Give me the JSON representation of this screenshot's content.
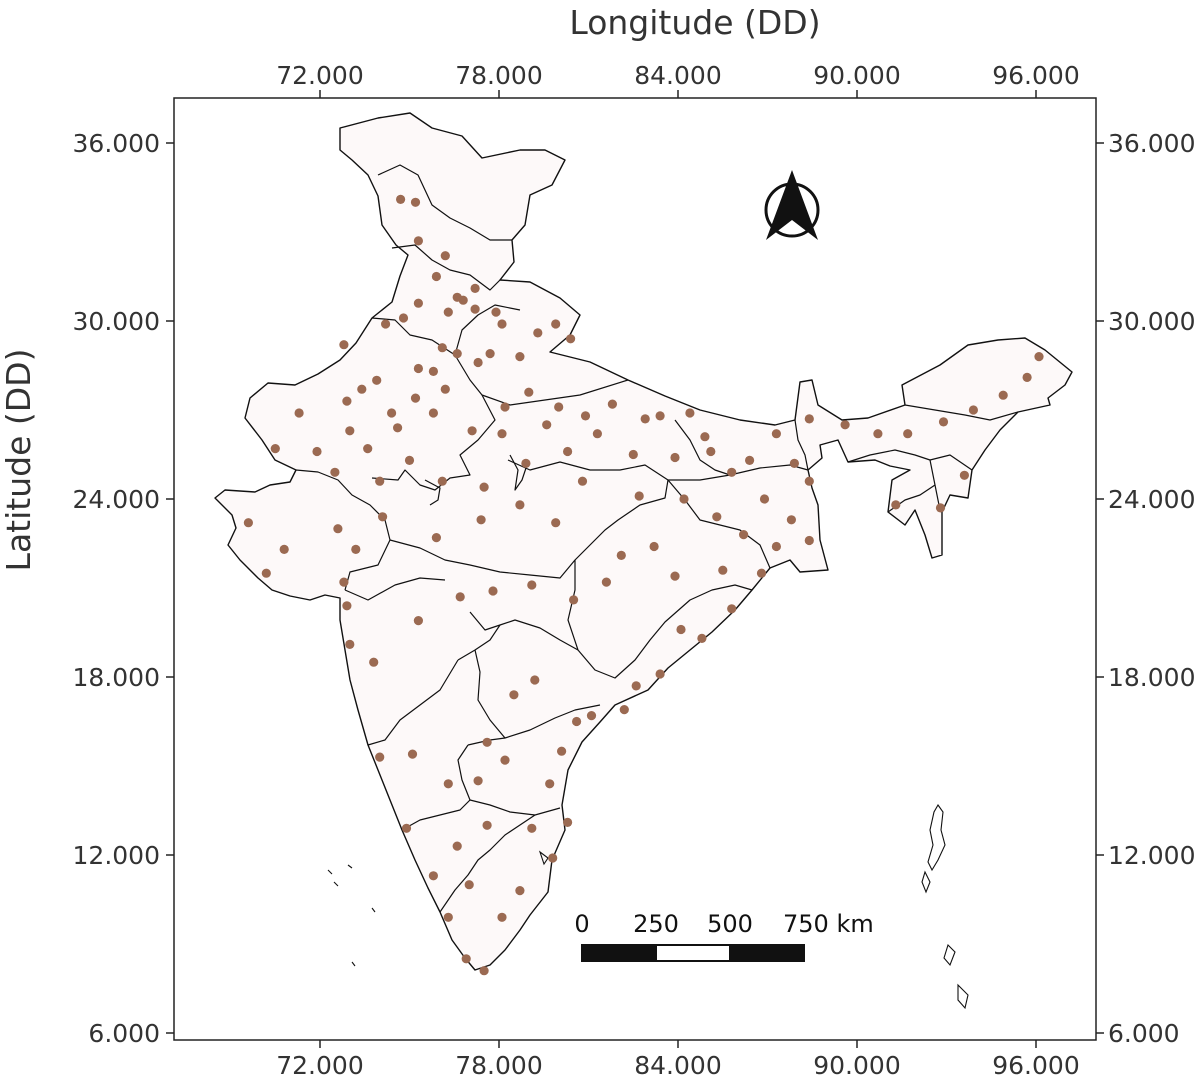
{
  "map": {
    "x_axis_title": "Longitude (DD)",
    "y_axis_title": "Latitude (DD)",
    "x_ticks": [
      "72.000",
      "78.000",
      "84.000",
      "90.000",
      "96.000"
    ],
    "y_ticks": [
      "36.000",
      "30.000",
      "24.000",
      "18.000",
      "12.000",
      "6.000"
    ],
    "point_color": "#9b6a52",
    "boundary_color": "#111111",
    "north_arrow_icon": "north-arrow-icon",
    "scale_bar": {
      "labels": [
        "0",
        "250",
        "500",
        "750 km"
      ],
      "segments": [
        "black",
        "white",
        "black"
      ]
    }
  },
  "chart_data": {
    "type": "scatter",
    "title": "",
    "xlabel": "Longitude (DD)",
    "ylabel": "Latitude (DD)",
    "xlim": [
      67,
      98
    ],
    "ylim": [
      6,
      37
    ],
    "x_ticks": [
      72,
      78,
      84,
      90,
      96
    ],
    "y_ticks": [
      6,
      12,
      18,
      24,
      30,
      36
    ],
    "grid": false,
    "series": [
      {
        "values": [
          [
            74.7,
            34.1
          ],
          [
            75.2,
            34.0
          ],
          [
            75.3,
            32.7
          ],
          [
            76.2,
            32.2
          ],
          [
            77.2,
            31.1
          ],
          [
            76.8,
            30.7
          ],
          [
            77.2,
            30.4
          ],
          [
            76.3,
            30.3
          ],
          [
            75.3,
            30.6
          ],
          [
            74.8,
            30.1
          ],
          [
            75.9,
            31.5
          ],
          [
            76.6,
            30.8
          ],
          [
            77.9,
            30.3
          ],
          [
            78.1,
            29.9
          ],
          [
            79.3,
            29.6
          ],
          [
            79.9,
            29.9
          ],
          [
            80.4,
            29.4
          ],
          [
            77.7,
            28.9
          ],
          [
            78.7,
            28.8
          ],
          [
            77.3,
            28.6
          ],
          [
            76.6,
            28.9
          ],
          [
            75.8,
            28.3
          ],
          [
            76.2,
            27.7
          ],
          [
            75.3,
            28.4
          ],
          [
            73.9,
            28.0
          ],
          [
            72.9,
            27.3
          ],
          [
            71.3,
            26.9
          ],
          [
            73.0,
            26.3
          ],
          [
            74.6,
            26.4
          ],
          [
            75.8,
            26.9
          ],
          [
            77.1,
            26.3
          ],
          [
            78.1,
            26.2
          ],
          [
            78.2,
            27.1
          ],
          [
            79.0,
            27.6
          ],
          [
            80.0,
            27.1
          ],
          [
            80.9,
            26.8
          ],
          [
            81.8,
            27.2
          ],
          [
            82.9,
            26.7
          ],
          [
            83.4,
            26.8
          ],
          [
            84.4,
            26.9
          ],
          [
            85.1,
            25.6
          ],
          [
            86.4,
            25.3
          ],
          [
            87.3,
            26.2
          ],
          [
            88.4,
            26.7
          ],
          [
            89.6,
            26.5
          ],
          [
            90.7,
            26.2
          ],
          [
            91.7,
            26.2
          ],
          [
            92.9,
            26.6
          ],
          [
            93.9,
            27.0
          ],
          [
            94.9,
            27.5
          ],
          [
            95.7,
            28.1
          ],
          [
            96.1,
            28.8
          ],
          [
            93.6,
            24.8
          ],
          [
            92.8,
            23.7
          ],
          [
            91.3,
            23.8
          ],
          [
            88.4,
            22.6
          ],
          [
            87.3,
            22.4
          ],
          [
            86.2,
            22.8
          ],
          [
            85.3,
            23.4
          ],
          [
            84.2,
            24.0
          ],
          [
            83.2,
            22.4
          ],
          [
            82.1,
            22.1
          ],
          [
            81.6,
            21.2
          ],
          [
            80.5,
            20.6
          ],
          [
            79.1,
            21.1
          ],
          [
            77.8,
            20.9
          ],
          [
            76.7,
            20.7
          ],
          [
            75.3,
            19.9
          ],
          [
            73.8,
            18.5
          ],
          [
            73.0,
            19.1
          ],
          [
            72.9,
            20.4
          ],
          [
            72.8,
            21.2
          ],
          [
            73.2,
            22.3
          ],
          [
            72.6,
            23.0
          ],
          [
            70.8,
            22.3
          ],
          [
            69.6,
            23.2
          ],
          [
            70.2,
            21.5
          ],
          [
            74.1,
            23.4
          ],
          [
            75.9,
            22.7
          ],
          [
            77.4,
            23.3
          ],
          [
            78.7,
            23.8
          ],
          [
            79.9,
            23.2
          ],
          [
            80.8,
            24.6
          ],
          [
            82.7,
            24.1
          ],
          [
            83.9,
            21.4
          ],
          [
            85.8,
            20.3
          ],
          [
            84.8,
            19.3
          ],
          [
            83.4,
            18.1
          ],
          [
            82.2,
            16.9
          ],
          [
            80.6,
            16.5
          ],
          [
            79.2,
            17.9
          ],
          [
            78.5,
            17.4
          ],
          [
            77.6,
            15.8
          ],
          [
            75.1,
            15.4
          ],
          [
            74.0,
            15.3
          ],
          [
            74.9,
            12.9
          ],
          [
            75.8,
            11.3
          ],
          [
            76.3,
            9.9
          ],
          [
            76.9,
            8.5
          ],
          [
            77.5,
            8.1
          ],
          [
            78.1,
            9.9
          ],
          [
            78.7,
            10.8
          ],
          [
            79.8,
            11.9
          ],
          [
            80.3,
            13.1
          ],
          [
            79.1,
            12.9
          ],
          [
            77.6,
            13.0
          ],
          [
            76.6,
            12.3
          ],
          [
            77.0,
            11.0
          ],
          [
            76.3,
            14.4
          ],
          [
            77.3,
            14.5
          ],
          [
            78.2,
            15.2
          ],
          [
            79.7,
            14.4
          ],
          [
            80.1,
            15.5
          ],
          [
            81.1,
            16.7
          ],
          [
            82.6,
            17.7
          ],
          [
            84.1,
            19.6
          ],
          [
            85.5,
            21.6
          ],
          [
            86.8,
            21.5
          ],
          [
            87.8,
            23.3
          ],
          [
            88.4,
            24.6
          ],
          [
            87.9,
            25.2
          ],
          [
            86.9,
            24.0
          ],
          [
            85.8,
            24.9
          ],
          [
            84.9,
            26.1
          ],
          [
            83.9,
            25.4
          ],
          [
            82.5,
            25.5
          ],
          [
            81.3,
            26.2
          ],
          [
            80.3,
            25.6
          ],
          [
            79.6,
            26.5
          ],
          [
            78.9,
            25.2
          ],
          [
            77.5,
            24.4
          ],
          [
            76.1,
            24.6
          ],
          [
            75.0,
            25.3
          ],
          [
            74.0,
            24.6
          ],
          [
            73.6,
            25.7
          ],
          [
            72.5,
            24.9
          ],
          [
            71.9,
            25.6
          ],
          [
            70.5,
            25.7
          ],
          [
            72.8,
            29.2
          ],
          [
            74.2,
            29.9
          ],
          [
            76.1,
            29.1
          ],
          [
            75.2,
            27.4
          ],
          [
            74.4,
            26.9
          ],
          [
            73.4,
            27.7
          ]
        ]
      }
    ]
  }
}
